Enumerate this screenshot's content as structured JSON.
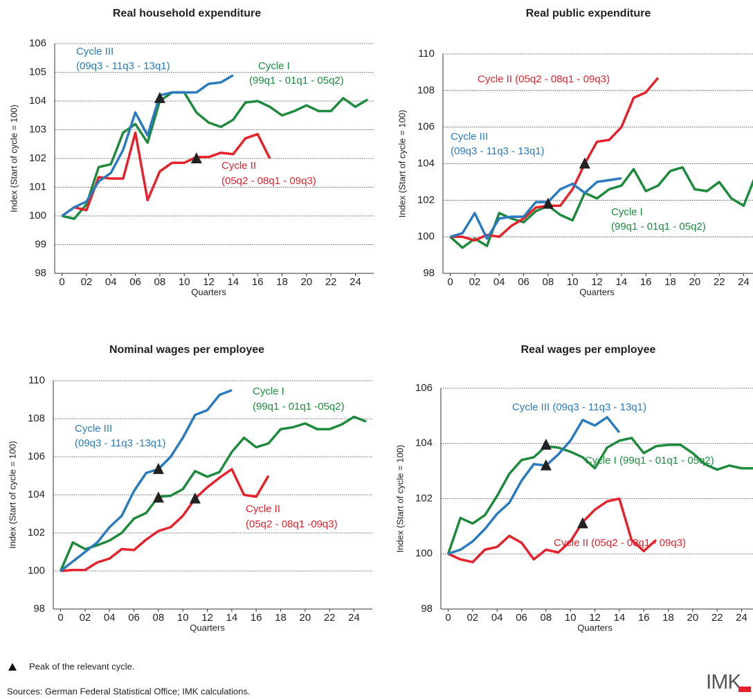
{
  "chart_data": [
    {
      "type": "line",
      "title": "Real household expenditure",
      "ylabel": "Index (Start of cycle = 100)",
      "xlabel": "Quarters",
      "x": [
        0,
        1,
        2,
        3,
        4,
        5,
        6,
        7,
        8,
        9,
        10,
        11,
        12,
        13,
        14,
        15,
        16,
        17,
        18,
        19,
        20,
        21,
        22,
        23,
        24,
        25
      ],
      "xlim": [
        -0.6,
        25.5
      ],
      "xticks": [
        0,
        {
          "value": 2,
          "label": "02"
        },
        {
          "value": 4,
          "label": "04"
        },
        {
          "value": 6,
          "label": "06"
        },
        {
          "value": 8,
          "label": "08"
        },
        10,
        12,
        14,
        16,
        18,
        20,
        22,
        24
      ],
      "ylim": [
        98,
        106
      ],
      "yticks": [
        98,
        99,
        100,
        101,
        102,
        103,
        104,
        105,
        106
      ],
      "grid": true,
      "series": [
        {
          "name": "Cycle I",
          "note": "(99q1 - 01q1 - 05q2)",
          "color": "#1d8a3e",
          "values": [
            100,
            99.9,
            100.4,
            101.7,
            101.8,
            102.9,
            103.2,
            102.55,
            104.0,
            104.3,
            104.3,
            103.6,
            103.25,
            103.1,
            103.35,
            103.95,
            104.0,
            103.8,
            103.5,
            103.65,
            103.85,
            103.65,
            103.65,
            104.1,
            103.8,
            104.05
          ]
        },
        {
          "name": "Cycle II",
          "note": "(05q2 - 08q1 - 09q3)",
          "color": "#e5222b",
          "values": [
            100,
            100.3,
            100.2,
            101.35,
            101.3,
            101.3,
            102.9,
            100.55,
            101.55,
            101.85,
            101.85,
            102.05,
            102.05,
            102.2,
            102.15,
            102.7,
            102.85,
            102.0,
            null,
            null,
            null,
            null,
            null,
            null,
            null,
            null
          ]
        },
        {
          "name": "Cycle III",
          "note": "(09q3 - 11q3 - 13q1)",
          "color": "#2a7bbd",
          "values": [
            100,
            100.3,
            100.5,
            101.2,
            101.5,
            102.3,
            103.6,
            102.8,
            104.2,
            104.3,
            104.3,
            104.3,
            104.6,
            104.65,
            104.9,
            null,
            null,
            null,
            null,
            null,
            null,
            null,
            null,
            null,
            null,
            null
          ]
        }
      ],
      "peaks": [
        {
          "x": 8,
          "y": 104.1
        },
        {
          "x": 11,
          "y": 102.0
        }
      ]
    },
    {
      "type": "line",
      "title": "Real public expenditure",
      "ylabel": "Index (Start of cycle = 100)",
      "xlabel": "Quarters",
      "x": [
        0,
        1,
        2,
        3,
        4,
        5,
        6,
        7,
        8,
        9,
        10,
        11,
        12,
        13,
        14,
        15,
        16,
        17,
        18,
        19,
        20,
        21,
        22,
        23,
        24,
        25
      ],
      "xlim": [
        -0.6,
        25.5
      ],
      "xticks": [
        0,
        {
          "value": 2,
          "label": "02"
        },
        {
          "value": 4,
          "label": "04"
        },
        {
          "value": 6,
          "label": "06"
        },
        {
          "value": 8,
          "label": "08"
        },
        10,
        12,
        14,
        16,
        18,
        20,
        22,
        24
      ],
      "ylim": [
        98,
        110
      ],
      "yticks": [
        98,
        100,
        102,
        104,
        106,
        108,
        110
      ],
      "grid": true,
      "series": [
        {
          "name": "Cycle I",
          "note": "(99q1 - 01q1 - 05q2)",
          "color": "#1d8a3e",
          "values": [
            100,
            99.4,
            99.9,
            99.5,
            101.3,
            101.0,
            100.8,
            101.4,
            101.7,
            101.2,
            100.9,
            102.4,
            102.1,
            102.6,
            102.8,
            103.7,
            102.5,
            102.8,
            103.6,
            103.8,
            102.6,
            102.5,
            103.0,
            102.1,
            101.7,
            103.4
          ]
        },
        {
          "name": "Cycle II (05q2 - 08q1 - 09q3)",
          "color": "#e5222b",
          "values": [
            100,
            100.0,
            99.8,
            100.1,
            100.0,
            100.6,
            101.0,
            101.6,
            101.7,
            101.7,
            102.6,
            104.0,
            105.2,
            105.3,
            106.0,
            107.6,
            107.9,
            108.7,
            null,
            null,
            null,
            null,
            null,
            null,
            null,
            null
          ]
        },
        {
          "name": "Cycle III",
          "note": "(09q3 - 11q3 - 13q1)",
          "color": "#2a7bbd",
          "values": [
            100,
            100.2,
            101.3,
            99.9,
            101.0,
            101.1,
            101.1,
            101.9,
            101.9,
            102.6,
            102.9,
            102.4,
            103.0,
            103.1,
            103.2,
            null,
            null,
            null,
            null,
            null,
            null,
            null,
            null,
            null,
            null,
            null
          ]
        }
      ],
      "peaks": [
        {
          "x": 8,
          "y": 101.8
        },
        {
          "x": 11,
          "y": 104.0
        }
      ]
    },
    {
      "type": "line",
      "title": "Nominal wages per employee",
      "ylabel": "Index (Start of cycle = 100)",
      "xlabel": "Quarters",
      "x": [
        0,
        1,
        2,
        3,
        4,
        5,
        6,
        7,
        8,
        9,
        10,
        11,
        12,
        13,
        14,
        15,
        16,
        17,
        18,
        19,
        20,
        21,
        22,
        23,
        24,
        25
      ],
      "xlim": [
        -0.6,
        25.5
      ],
      "xticks": [
        0,
        {
          "value": 2,
          "label": "02"
        },
        {
          "value": 4,
          "label": "04"
        },
        {
          "value": 6,
          "label": "06"
        },
        {
          "value": 8,
          "label": "08"
        },
        10,
        12,
        14,
        16,
        18,
        20,
        22,
        24
      ],
      "ylim": [
        98,
        110
      ],
      "yticks": [
        98,
        100,
        102,
        104,
        106,
        108,
        110
      ],
      "grid": true,
      "series": [
        {
          "name": "Cycle I",
          "note": "(99q1 - 01q1 -05q2)",
          "color": "#1d8a3e",
          "values": [
            100,
            101.5,
            101.15,
            101.35,
            101.6,
            102.0,
            102.75,
            103.05,
            103.9,
            103.95,
            104.3,
            105.25,
            104.95,
            105.2,
            106.25,
            107.0,
            106.5,
            106.7,
            107.45,
            107.55,
            107.75,
            107.45,
            107.45,
            107.7,
            108.1,
            107.85
          ]
        },
        {
          "name": "Cycle II",
          "note": "(05q2 - 08q1 -09q3)",
          "color": "#e5222b",
          "values": [
            100,
            100.05,
            100.05,
            100.45,
            100.65,
            101.15,
            101.1,
            101.65,
            102.1,
            102.3,
            102.9,
            103.8,
            104.4,
            104.9,
            105.35,
            104.0,
            103.9,
            105.0,
            null,
            null,
            null,
            null,
            null,
            null,
            null,
            null
          ]
        },
        {
          "name": "Cycle III",
          "note": "(09q3 - 11q3 -13q1)",
          "color": "#2a7bbd",
          "values": [
            100,
            100.5,
            101.0,
            101.5,
            102.3,
            102.9,
            104.2,
            105.15,
            105.35,
            106.0,
            107.0,
            108.2,
            108.45,
            109.25,
            109.5,
            null,
            null,
            null,
            null,
            null,
            null,
            null,
            null,
            null,
            null,
            null
          ]
        }
      ],
      "peaks": [
        {
          "x": 8,
          "y": 103.85
        },
        {
          "x": 8,
          "y": 105.35
        },
        {
          "x": 11,
          "y": 103.8
        }
      ]
    },
    {
      "type": "line",
      "title": "Real wages per employee",
      "ylabel": "Index (Start of cycle = 100)",
      "xlabel": "Quarters",
      "x": [
        0,
        1,
        2,
        3,
        4,
        5,
        6,
        7,
        8,
        9,
        10,
        11,
        12,
        13,
        14,
        15,
        16,
        17,
        18,
        19,
        20,
        21,
        22,
        23,
        24,
        25
      ],
      "xlim": [
        -0.6,
        25.5
      ],
      "xticks": [
        0,
        {
          "value": 2,
          "label": "02"
        },
        {
          "value": 4,
          "label": "04"
        },
        {
          "value": 6,
          "label": "06"
        },
        {
          "value": 8,
          "label": "08"
        },
        10,
        12,
        14,
        16,
        18,
        20,
        22,
        24
      ],
      "ylim": [
        98,
        106
      ],
      "yticks": [
        98,
        100,
        102,
        104,
        106
      ],
      "grid": true,
      "series": [
        {
          "name": "Cycle I (99q1 - 01q1 - 05q2)",
          "color": "#1d8a3e",
          "values": [
            100,
            101.3,
            101.1,
            101.4,
            102.1,
            102.9,
            103.4,
            103.5,
            103.9,
            103.85,
            103.7,
            103.5,
            103.1,
            103.85,
            104.1,
            104.2,
            103.65,
            103.9,
            103.95,
            103.95,
            103.65,
            103.25,
            103.05,
            103.2,
            103.1,
            103.1
          ]
        },
        {
          "name": "Cycle II (05q2 - 08q1 - 09q3)",
          "color": "#e5222b",
          "values": [
            100,
            99.8,
            99.7,
            100.15,
            100.25,
            100.65,
            100.4,
            99.8,
            100.15,
            100.05,
            100.45,
            101.15,
            101.6,
            101.9,
            102.0,
            100.5,
            100.1,
            100.5,
            null,
            null,
            null,
            null,
            null,
            null,
            null,
            null
          ]
        },
        {
          "name": "Cycle III (09q3 - 11q3 - 13q1)",
          "color": "#2a7bbd",
          "values": [
            100,
            100.15,
            100.45,
            100.9,
            101.45,
            101.85,
            102.65,
            103.25,
            103.2,
            103.6,
            104.1,
            104.85,
            104.65,
            104.95,
            104.4,
            null,
            null,
            null,
            null,
            null,
            null,
            null,
            null,
            null,
            null,
            null
          ]
        }
      ],
      "peaks": [
        {
          "x": 8,
          "y": 103.95
        },
        {
          "x": 8,
          "y": 103.2
        },
        {
          "x": 11,
          "y": 101.1
        }
      ]
    }
  ],
  "peak_note": "Peak of the relevant cycle.",
  "source": "Sources: German Federal Statistical Office; IMK calculations.",
  "logo": "IMK"
}
